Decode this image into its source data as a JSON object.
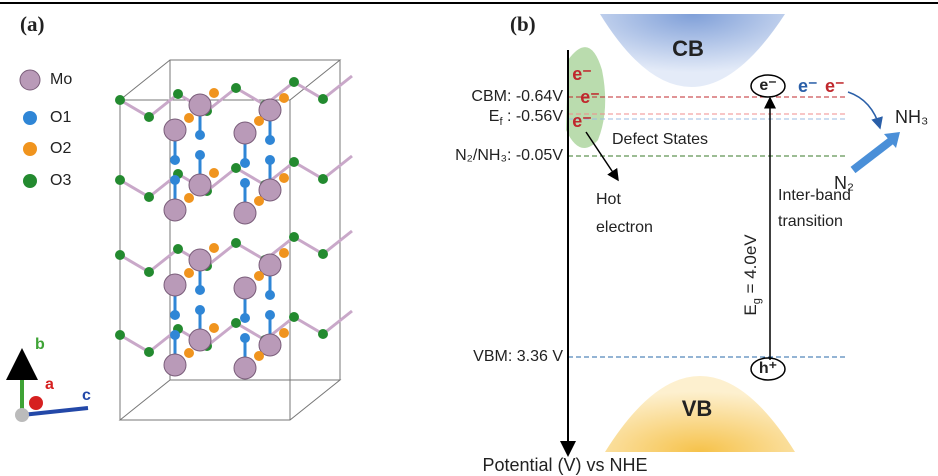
{
  "panel_a": {
    "label": "(a)",
    "legend": [
      "Mo",
      "O1",
      "O2",
      "O3"
    ],
    "axes": {
      "b": "b",
      "a": "a",
      "c": "c"
    }
  },
  "panel_b": {
    "label": "(b)",
    "cb": "CB",
    "vb": "VB",
    "cbm": "CBM: -0.64V",
    "ef_main": "E",
    "ef_sub": "f",
    "ef_rest": " : -0.56V",
    "n2nh3": "N₂/NH₃: -0.05V",
    "vbm": "VBM: 3.36 V",
    "electrons": [
      "e⁻",
      "e⁻",
      "e⁻"
    ],
    "defect_states": "Defect States",
    "hot_electron": [
      "Hot",
      "electron"
    ],
    "e_circle": "e⁻",
    "h_circle": "h⁺",
    "free_electrons": [
      "e⁻",
      "e⁻"
    ],
    "nh3": "NH₃",
    "n2": "N₂",
    "eg_main": "E",
    "eg_sub": "g",
    "eg_rest": " = 4.0eV",
    "interband": [
      "Inter-band",
      "transition"
    ],
    "axis_label": "Potential (V) vs NHE"
  }
}
